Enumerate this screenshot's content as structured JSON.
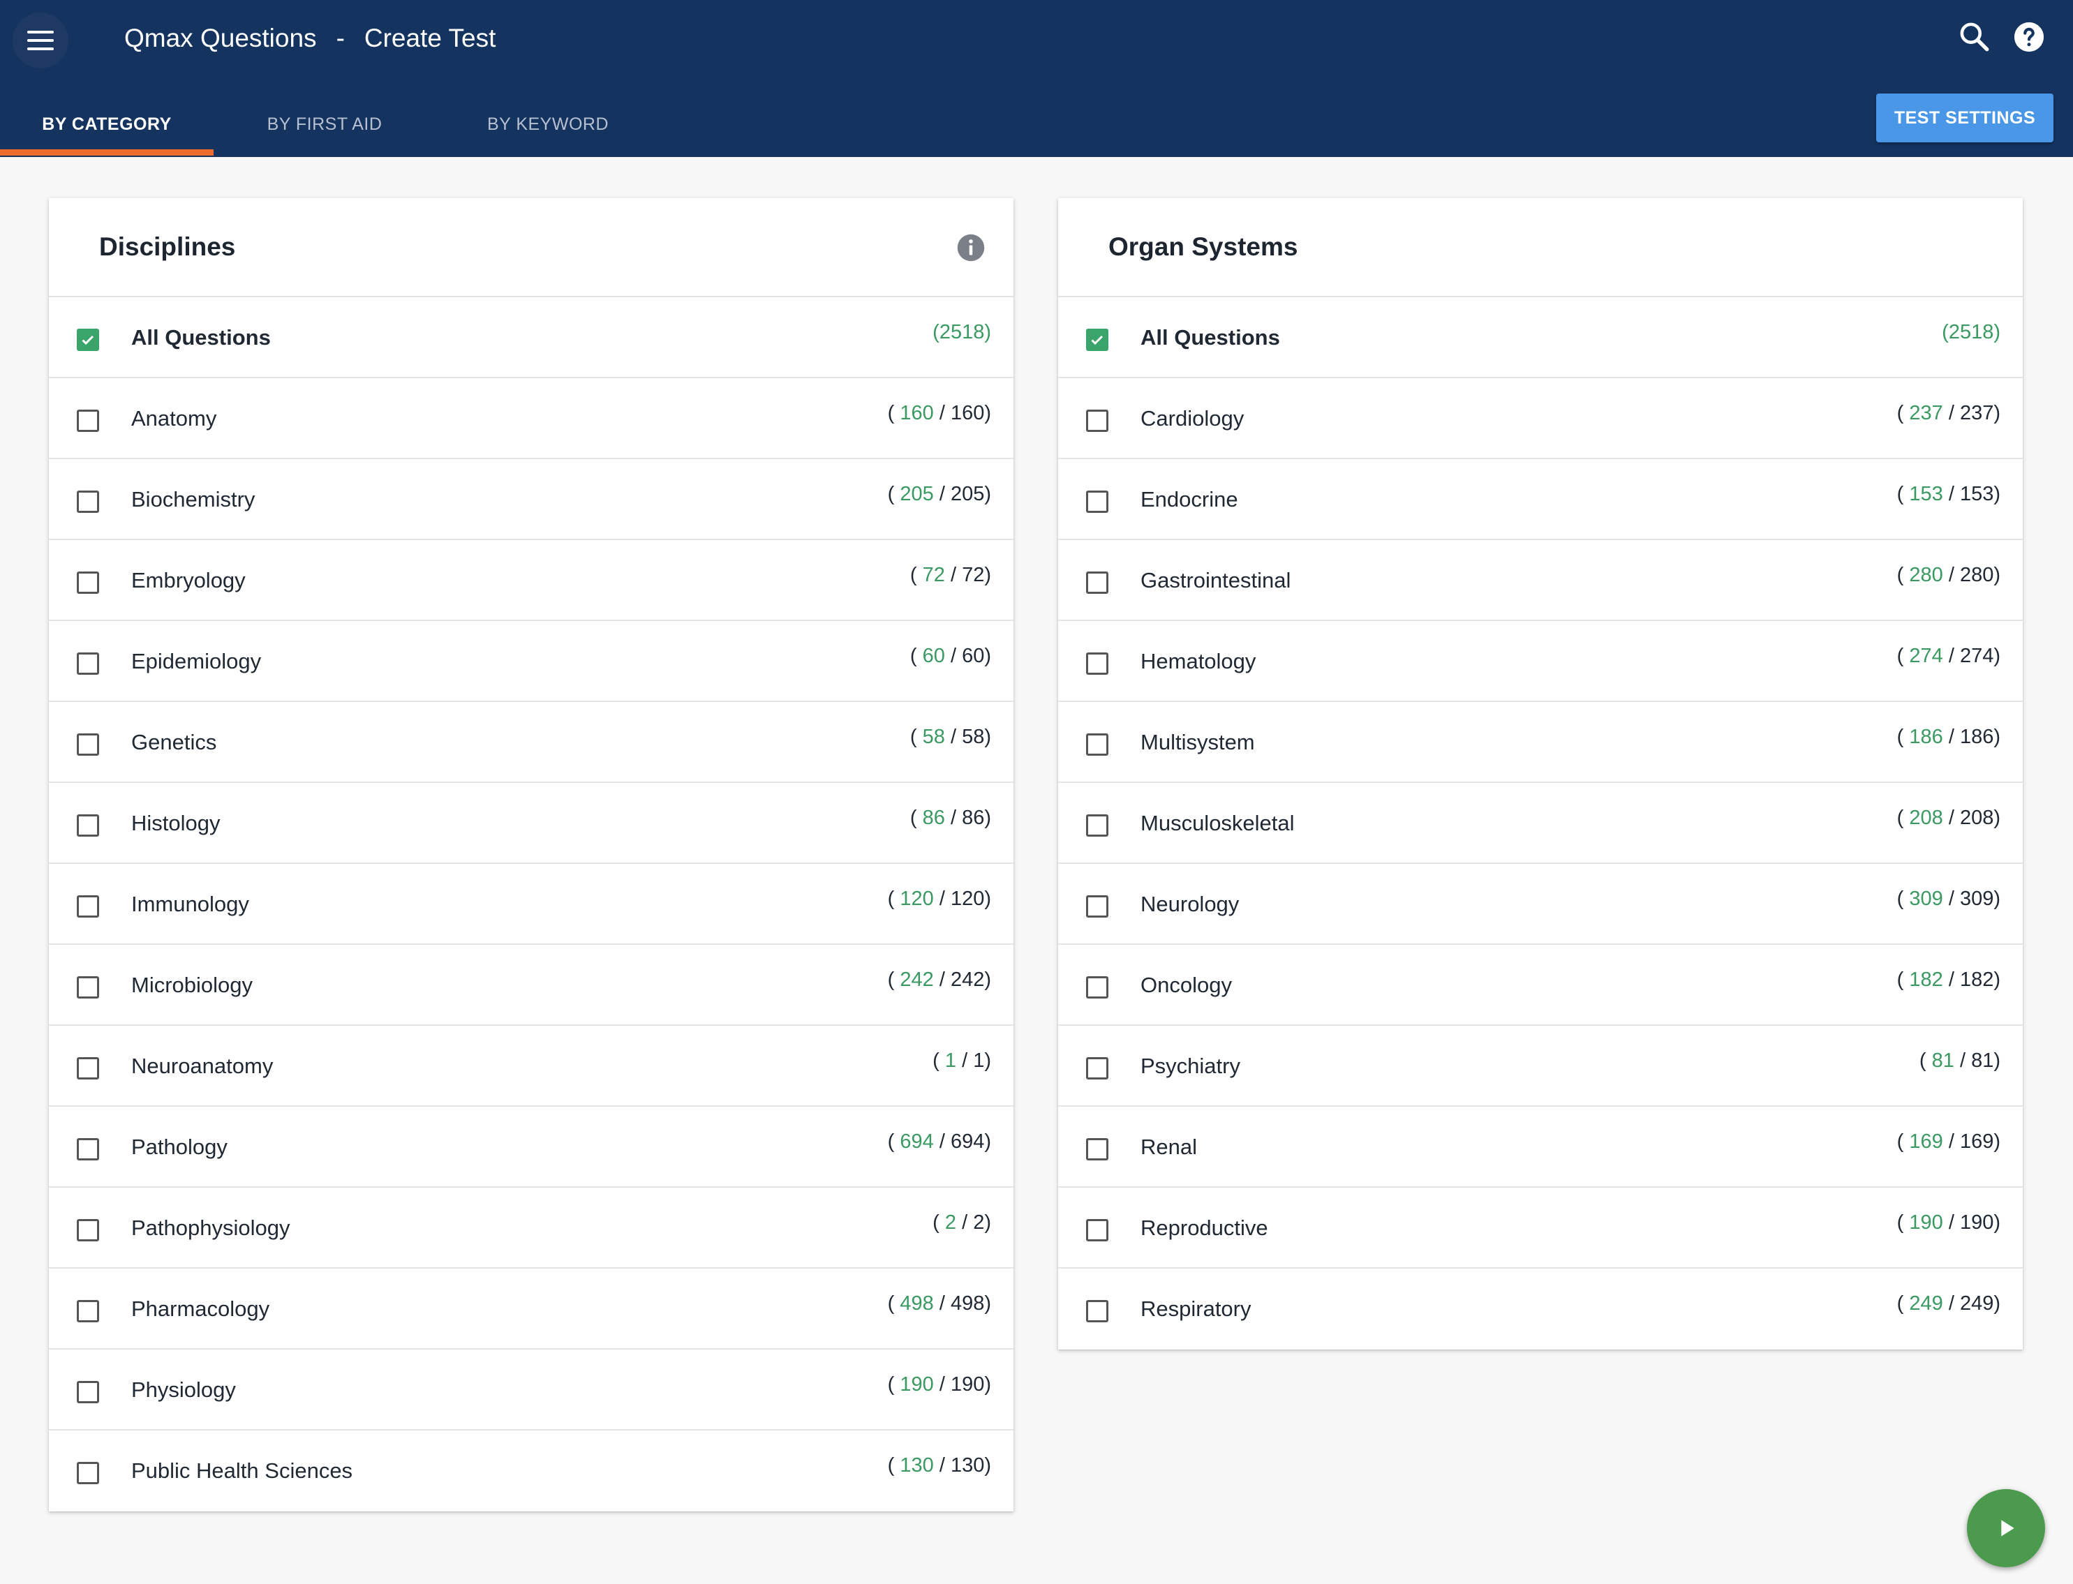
{
  "header": {
    "app_name": "Qmax Questions",
    "separator": "-",
    "page_title": "Create Test",
    "background_color": "#14335f"
  },
  "tabs": [
    {
      "label": "BY CATEGORY",
      "active": true
    },
    {
      "label": "BY FIRST AID",
      "active": false
    },
    {
      "label": "BY KEYWORD",
      "active": false
    }
  ],
  "toolbar": {
    "settings_label": "TEST SETTINGS",
    "icons": [
      "menu-icon",
      "search-icon",
      "help-icon"
    ]
  },
  "disciplines": {
    "title": "Disciplines",
    "all": {
      "label": "All Questions",
      "count": "(2518)",
      "checked": true
    },
    "items": [
      {
        "label": "Anatomy",
        "selected": "160",
        "total": "160"
      },
      {
        "label": "Biochemistry",
        "selected": "205",
        "total": "205"
      },
      {
        "label": "Embryology",
        "selected": "72",
        "total": "72"
      },
      {
        "label": "Epidemiology",
        "selected": "60",
        "total": "60"
      },
      {
        "label": "Genetics",
        "selected": "58",
        "total": "58"
      },
      {
        "label": "Histology",
        "selected": "86",
        "total": "86"
      },
      {
        "label": "Immunology",
        "selected": "120",
        "total": "120"
      },
      {
        "label": "Microbiology",
        "selected": "242",
        "total": "242"
      },
      {
        "label": "Neuroanatomy",
        "selected": "1",
        "total": "1"
      },
      {
        "label": "Pathology",
        "selected": "694",
        "total": "694"
      },
      {
        "label": "Pathophysiology",
        "selected": "2",
        "total": "2"
      },
      {
        "label": "Pharmacology",
        "selected": "498",
        "total": "498"
      },
      {
        "label": "Physiology",
        "selected": "190",
        "total": "190"
      },
      {
        "label": "Public Health Sciences",
        "selected": "130",
        "total": "130"
      }
    ]
  },
  "organ_systems": {
    "title": "Organ Systems",
    "all": {
      "label": "All Questions",
      "count": "(2518)",
      "checked": true
    },
    "items": [
      {
        "label": "Cardiology",
        "selected": "237",
        "total": "237"
      },
      {
        "label": "Endocrine",
        "selected": "153",
        "total": "153"
      },
      {
        "label": "Gastrointestinal",
        "selected": "280",
        "total": "280"
      },
      {
        "label": "Hematology",
        "selected": "274",
        "total": "274"
      },
      {
        "label": "Multisystem",
        "selected": "186",
        "total": "186"
      },
      {
        "label": "Musculoskeletal",
        "selected": "208",
        "total": "208"
      },
      {
        "label": "Neurology",
        "selected": "309",
        "total": "309"
      },
      {
        "label": "Oncology",
        "selected": "182",
        "total": "182"
      },
      {
        "label": "Psychiatry",
        "selected": "81",
        "total": "81"
      },
      {
        "label": "Renal",
        "selected": "169",
        "total": "169"
      },
      {
        "label": "Reproductive",
        "selected": "190",
        "total": "190"
      },
      {
        "label": "Respiratory",
        "selected": "249",
        "total": "249"
      }
    ]
  },
  "colors": {
    "accent_tab": "#ef6c2f",
    "button": "#4a97e8",
    "count_green": "#3a9a62",
    "checkbox_checked": "#3aa46a",
    "fab": "#4b9a4d"
  }
}
